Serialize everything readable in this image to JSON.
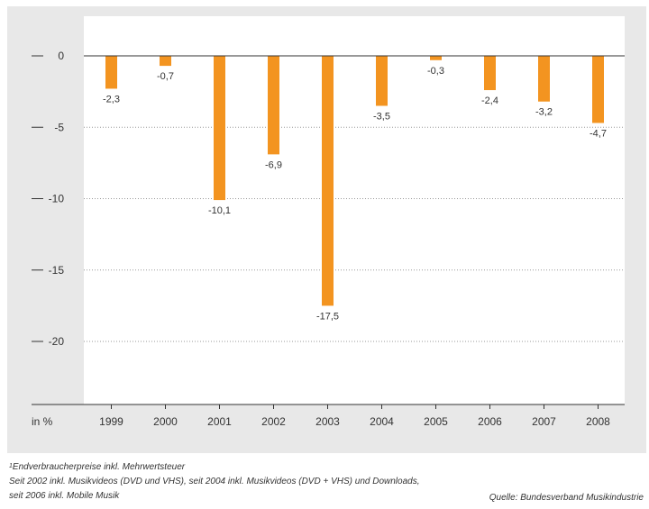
{
  "chart_data": {
    "type": "bar",
    "categories": [
      "1999",
      "2000",
      "2001",
      "2002",
      "2003",
      "2004",
      "2005",
      "2006",
      "2007",
      "2008"
    ],
    "values": [
      -2.3,
      -0.7,
      -10.1,
      -6.9,
      -17.5,
      -3.5,
      -0.3,
      -2.4,
      -3.2,
      -4.7
    ],
    "value_labels": [
      "-2,3",
      "-0,7",
      "-10,1",
      "-6,9",
      "-17,5",
      "-3,5",
      "-0,3",
      "-2,4",
      "-3,2",
      "-4,7"
    ],
    "yticks": [
      0,
      -5,
      -10,
      -15,
      -20
    ],
    "ytick_labels": [
      "0",
      "-5",
      "-10",
      "-15",
      "-20"
    ],
    "ylim": [
      -24,
      3
    ],
    "ylabel": "in %",
    "bar_color": "#f39420",
    "plot_background": "#ffffff",
    "panel_background": "#e8e8e8",
    "grid": "dotted horizontal"
  },
  "footnotes": {
    "line1_marker": "1",
    "line1": "Endverbraucherpreise inkl. Mehrwertsteuer",
    "line2": "Seit 2002 inkl. Musikvideos (DVD und VHS), seit 2004 inkl. Musikvideos (DVD + VHS) und Downloads,",
    "line3": "seit 2006 inkl. Mobile Musik"
  },
  "source": "Quelle: Bundesverband Musikindustrie"
}
